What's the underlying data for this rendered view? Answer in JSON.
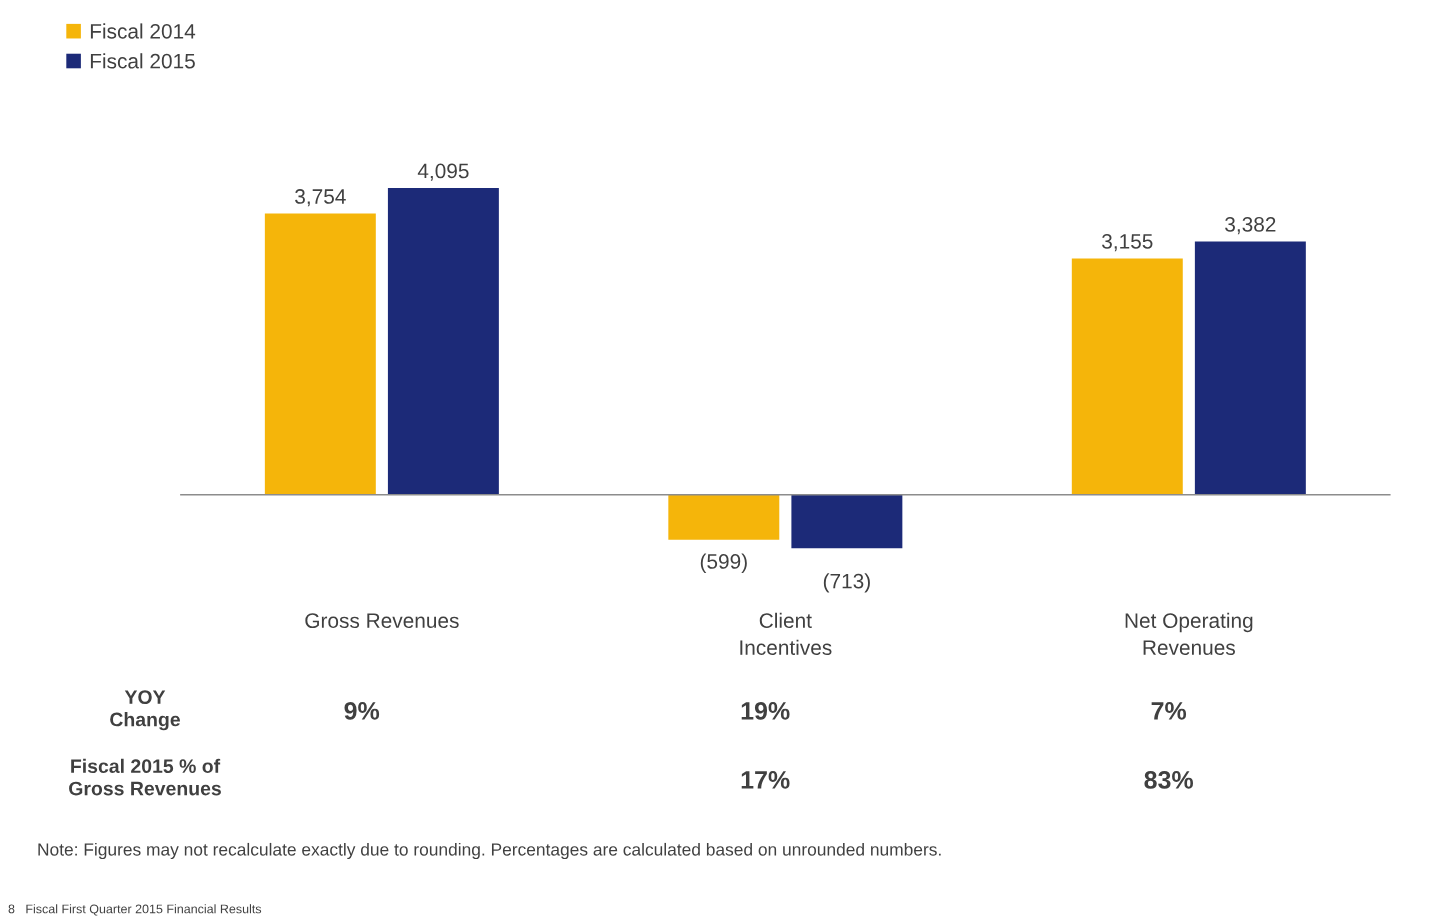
{
  "chart_data": {
    "type": "bar",
    "categories": [
      "Gross Revenues",
      "Client\nIncentives",
      "Net Operating\nRevenues"
    ],
    "series": [
      {
        "name": "Fiscal 2014",
        "color": "#f5b50a",
        "values": [
          3754,
          -599,
          3155
        ],
        "value_labels": [
          "3,754",
          "(599)",
          "3,155"
        ]
      },
      {
        "name": "Fiscal 2015",
        "color": "#1c2a78",
        "values": [
          4095,
          -713,
          3382
        ],
        "value_labels": [
          "4,095",
          "(713)",
          "3,382"
        ]
      }
    ],
    "annotations": [
      "YOY\nChange",
      "9%",
      "19%",
      "7%",
      "Fiscal 2015 % of\nGross Revenues",
      "17%",
      "83%",
      "Note: Figures may not recalculate exactly due to rounding. Percentages are calculated based on unrounded numbers.",
      "8   Fiscal First Quarter 2015 Financial Results"
    ],
    "legend": "top left",
    "grid": false,
    "tick_labels": "x"
  }
}
